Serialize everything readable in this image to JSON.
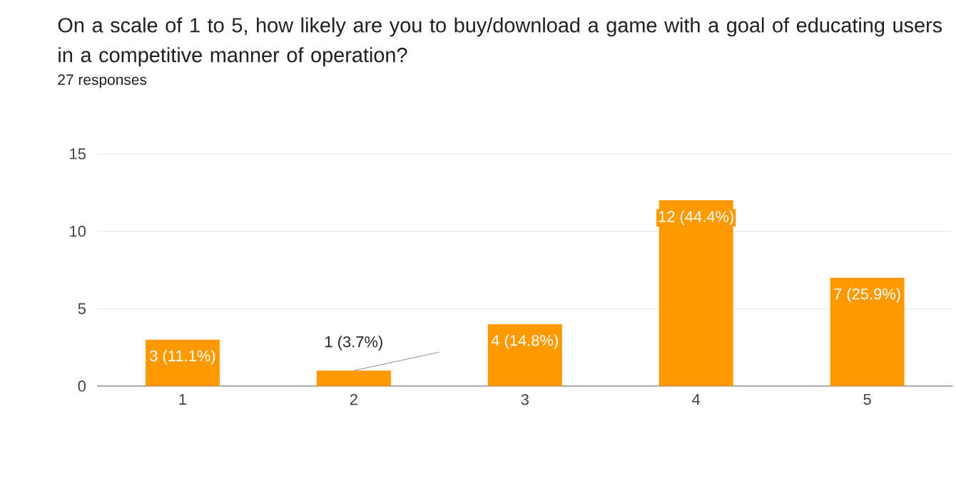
{
  "chart_data": {
    "type": "bar",
    "title": "On a scale of 1 to 5, how likely are you to buy/download a game with a goal of educating users in a competitive manner of operation?",
    "subtitle": "27 responses",
    "categories": [
      "1",
      "2",
      "3",
      "4",
      "5"
    ],
    "values": [
      3,
      1,
      4,
      12,
      7
    ],
    "value_labels": [
      "3 (11.1%)",
      "1 (3.7%)",
      "4 (14.8%)",
      "12 (44.4%)",
      "7 (25.9%)"
    ],
    "color": "#ff9900",
    "ylim": [
      0,
      15
    ],
    "yticks": [
      0,
      5,
      10,
      15
    ],
    "grid": "y"
  }
}
